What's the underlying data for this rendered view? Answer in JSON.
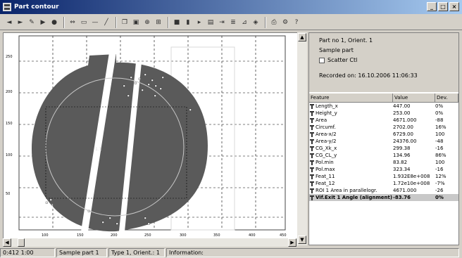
{
  "window": {
    "title": "Part contour",
    "minimize": "_",
    "maximize": "□",
    "close": "×"
  },
  "toolbar": {
    "icons": [
      "back-icon",
      "forward-icon",
      "pointer-icon",
      "play-icon",
      "record-icon",
      "scale-icon",
      "select-icon",
      "ruler-icon",
      "line-icon",
      "copy-icon",
      "paste-icon",
      "zoom-icon",
      "grid-icon",
      "stop-icon",
      "pause-icon",
      "step-icon",
      "save-icon",
      "export-icon",
      "layers-icon",
      "measure-icon",
      "filter-icon",
      "print-icon",
      "settings-icon",
      "help-icon"
    ]
  },
  "plot": {
    "y_ticks": [
      "250",
      "200",
      "150",
      "100",
      "50"
    ],
    "x_ticks": [
      "100",
      "150",
      "200",
      "250",
      "300",
      "350",
      "400",
      "450"
    ],
    "center_label": "1.1",
    "corner_label": "2.1",
    "colors": {
      "part": "#5a5a5a",
      "grid": "#000000",
      "circle": "#c8c8c8",
      "points": "#ffffff"
    }
  },
  "info": {
    "line1": "Part no 1, Orient. 1",
    "line2": "Sample part",
    "scatter_label": "Scatter Ctl",
    "recorded": "Recorded on: 16.10.2006 11:06:33"
  },
  "table": {
    "headers": [
      "Feature",
      "Value",
      "Dev."
    ],
    "rows": [
      [
        "Length_x",
        "447.00",
        "0%"
      ],
      [
        "Height_y",
        "253.00",
        "0%"
      ],
      [
        "Area",
        "4671.000",
        "-88"
      ],
      [
        "Circumf.",
        "2702.00",
        "16%"
      ],
      [
        "Area-x/2",
        "6729.00",
        "100"
      ],
      [
        "Area-y/2",
        "24376.00",
        "-48"
      ],
      [
        "CG_Xk_x",
        "299.38",
        "-16"
      ],
      [
        "CG_CL_y",
        "134.96",
        "86%"
      ],
      [
        "Pol.min",
        "83.82",
        "100"
      ],
      [
        "Pol.max",
        "323.34",
        "-16"
      ],
      [
        "Feat_11",
        "1.932E8e+008",
        "12%"
      ],
      [
        "Feat_12",
        "1.72e10e+008",
        "-7%"
      ],
      [
        "ROI 1 Area in parallelogr.",
        "4671.000",
        "-26"
      ],
      [
        "Vif.Exit 1 Angle (alignment)",
        "-83.76",
        "0%"
      ]
    ],
    "selected_index": 13
  },
  "status": {
    "coords": "0:412 1:00",
    "part": "Sample part 1",
    "type": "Type 1, Orient.: 1",
    "info": "Information:"
  }
}
